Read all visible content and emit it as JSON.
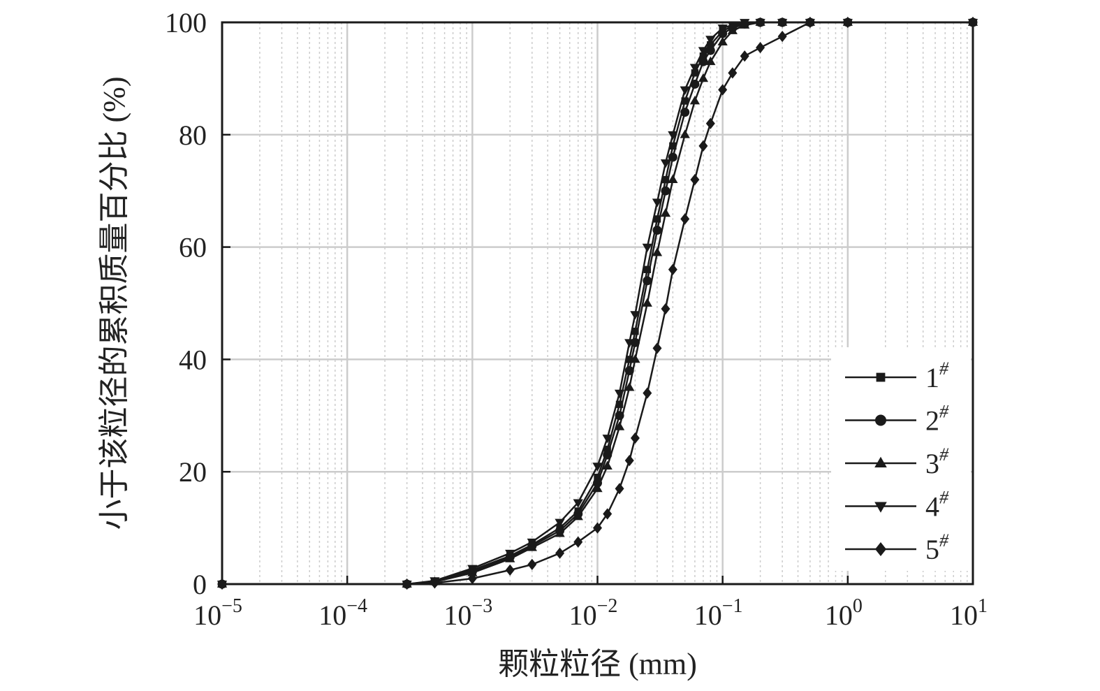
{
  "chart_data": {
    "type": "line",
    "xlabel": "颗粒粒径 (mm)",
    "ylabel": "小于该粒径的累积质量百分比 (%)",
    "x_scale": "log",
    "xlim": [
      1e-05,
      10
    ],
    "ylim": [
      0,
      100
    ],
    "x_tick_labels": [
      {
        "base": "10",
        "exp": "−5",
        "value": 1e-05
      },
      {
        "base": "10",
        "exp": "−4",
        "value": 0.0001
      },
      {
        "base": "10",
        "exp": "−3",
        "value": 0.001
      },
      {
        "base": "10",
        "exp": "−2",
        "value": 0.01
      },
      {
        "base": "10",
        "exp": "−1",
        "value": 0.1
      },
      {
        "base": "10",
        "exp": "0",
        "value": 1
      },
      {
        "base": "10",
        "exp": "1",
        "value": 10
      }
    ],
    "y_tick_labels": [
      "0",
      "20",
      "40",
      "60",
      "80",
      "100"
    ],
    "y_tick_values": [
      0,
      20,
      40,
      60,
      80,
      100
    ],
    "grid": true,
    "legend_position": "bottom-right",
    "line_color": "#1a1a1a",
    "grid_color": "#cccccc",
    "series": [
      {
        "name": "1",
        "name_sup": "#",
        "marker": "square",
        "x": [
          1e-05,
          0.0003,
          0.0005,
          0.001,
          0.002,
          0.003,
          0.005,
          0.007,
          0.01,
          0.012,
          0.015,
          0.018,
          0.02,
          0.025,
          0.03,
          0.035,
          0.04,
          0.05,
          0.06,
          0.07,
          0.08,
          0.1,
          0.12,
          0.15,
          0.2,
          0.3,
          0.5,
          1,
          10
        ],
        "y": [
          0,
          0,
          0.5,
          2.5,
          5,
          7,
          10,
          13,
          19,
          24,
          32,
          40,
          45,
          56,
          65,
          72,
          78,
          86,
          91,
          94,
          96,
          98.5,
          99.3,
          99.8,
          100,
          100,
          100,
          100,
          100
        ]
      },
      {
        "name": "2",
        "name_sup": "#",
        "marker": "circle",
        "x": [
          1e-05,
          0.0003,
          0.0005,
          0.001,
          0.002,
          0.003,
          0.005,
          0.007,
          0.01,
          0.012,
          0.015,
          0.018,
          0.02,
          0.025,
          0.03,
          0.035,
          0.04,
          0.05,
          0.06,
          0.07,
          0.08,
          0.1,
          0.12,
          0.15,
          0.2,
          0.3,
          0.5,
          1,
          10
        ],
        "y": [
          0,
          0,
          0.4,
          2.2,
          4.8,
          6.8,
          9.5,
          12.5,
          18,
          23,
          30,
          38,
          43,
          54,
          63,
          70,
          76,
          84,
          89,
          93,
          95,
          98,
          99,
          99.7,
          100,
          100,
          100,
          100,
          100
        ]
      },
      {
        "name": "3",
        "name_sup": "#",
        "marker": "triangle-up",
        "x": [
          1e-05,
          0.0003,
          0.0005,
          0.001,
          0.002,
          0.003,
          0.005,
          0.007,
          0.01,
          0.012,
          0.015,
          0.018,
          0.02,
          0.025,
          0.03,
          0.035,
          0.04,
          0.05,
          0.06,
          0.07,
          0.08,
          0.1,
          0.12,
          0.15,
          0.2,
          0.3,
          0.5,
          1,
          10
        ],
        "y": [
          0,
          0,
          0.4,
          2,
          4.5,
          6.5,
          9,
          12,
          17,
          21,
          28,
          35,
          40,
          50,
          59,
          66,
          72,
          80,
          86,
          90,
          93,
          96.5,
          98.5,
          99.5,
          100,
          100,
          100,
          100,
          100
        ]
      },
      {
        "name": "4",
        "name_sup": "#",
        "marker": "triangle-down",
        "x": [
          1e-05,
          0.0003,
          0.0005,
          0.001,
          0.002,
          0.003,
          0.005,
          0.007,
          0.01,
          0.012,
          0.015,
          0.018,
          0.02,
          0.025,
          0.03,
          0.035,
          0.04,
          0.05,
          0.06,
          0.07,
          0.08,
          0.1,
          0.12,
          0.15,
          0.2,
          0.3,
          0.5,
          1,
          10
        ],
        "y": [
          0,
          0,
          0.6,
          2.8,
          5.5,
          7.5,
          11,
          14.5,
          21,
          26,
          34,
          43,
          48,
          60,
          68,
          75,
          80,
          88,
          92,
          95,
          97,
          99,
          99.5,
          100,
          100,
          100,
          100,
          100,
          100
        ]
      },
      {
        "name": "5",
        "name_sup": "#",
        "marker": "diamond",
        "x": [
          1e-05,
          0.0003,
          0.0005,
          0.001,
          0.002,
          0.003,
          0.005,
          0.007,
          0.01,
          0.012,
          0.015,
          0.018,
          0.02,
          0.025,
          0.03,
          0.035,
          0.04,
          0.05,
          0.06,
          0.07,
          0.08,
          0.1,
          0.12,
          0.15,
          0.2,
          0.3,
          0.5,
          1,
          10
        ],
        "y": [
          0,
          0,
          0.2,
          1,
          2.5,
          3.5,
          5.5,
          7.5,
          10,
          12.5,
          17,
          22,
          26,
          34,
          42,
          49,
          56,
          65,
          72,
          78,
          82,
          88,
          91,
          94,
          95.5,
          97.5,
          100,
          100,
          100
        ]
      }
    ]
  }
}
